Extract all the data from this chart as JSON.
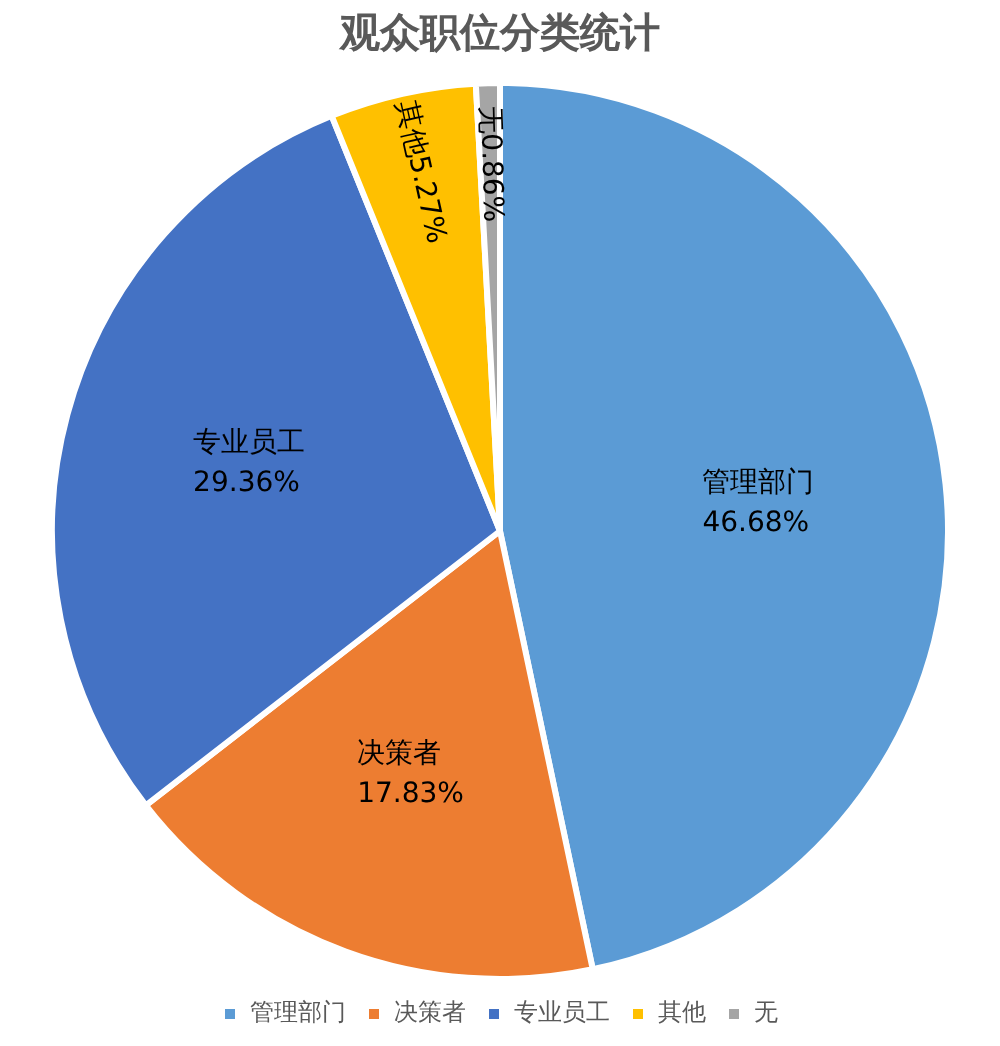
{
  "chart_data": {
    "type": "pie",
    "title": "观众职位分类统计",
    "categories": [
      "管理部门",
      "决策者",
      "专业员工",
      "其他",
      "无"
    ],
    "values": [
      46.68,
      17.83,
      29.36,
      5.27,
      0.86
    ],
    "value_labels": [
      "46.68%",
      "17.83%",
      "29.36%",
      "5.27%",
      "0.86%"
    ],
    "colors": [
      "#5b9bd5",
      "#ed7d31",
      "#4472c4",
      "#ffc000",
      "#a5a5a5"
    ],
    "legend": "bottom"
  }
}
